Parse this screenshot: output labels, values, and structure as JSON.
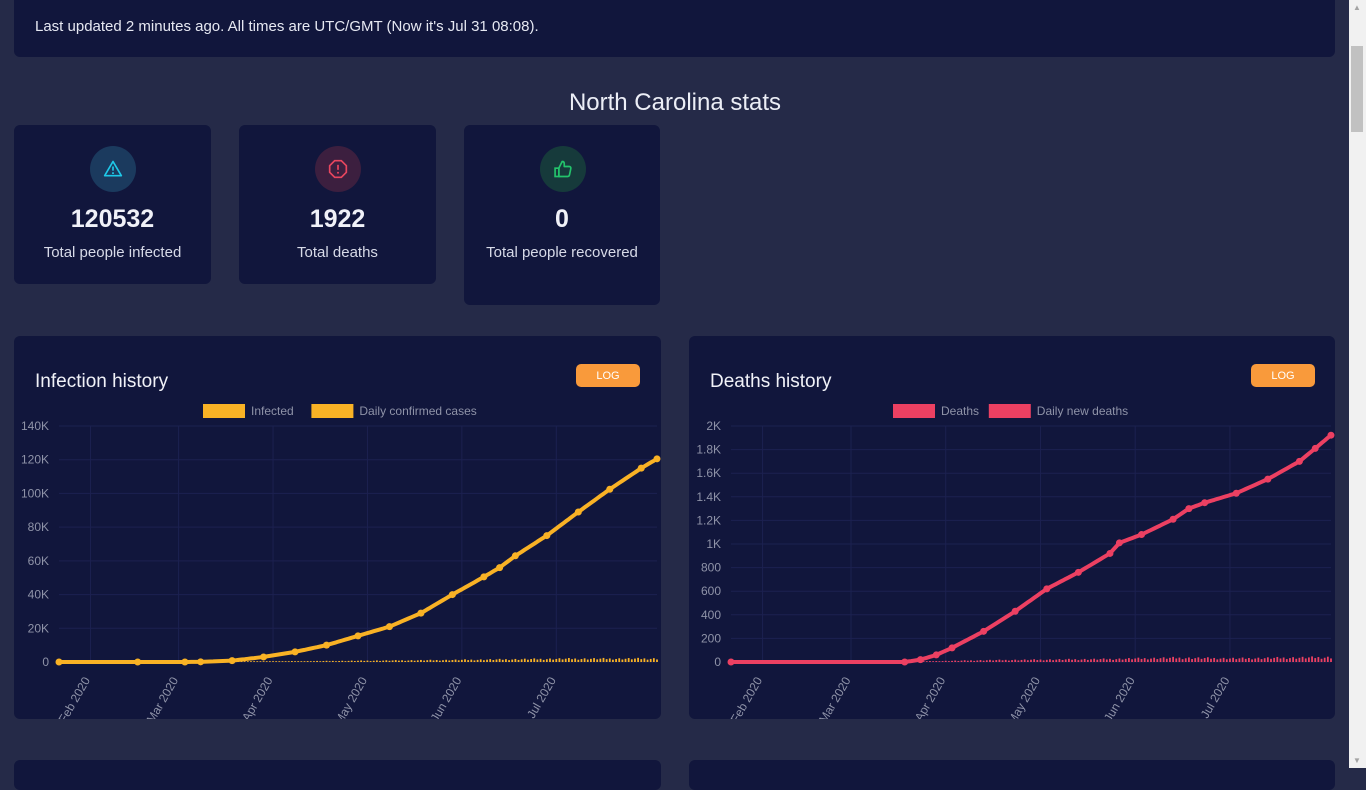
{
  "update_bar": {
    "text": "Last updated 2 minutes ago. All times are UTC/GMT (Now it's Jul 31 08:08)."
  },
  "page_title": "North Carolina stats",
  "stats": [
    {
      "value": "120532",
      "label": "Total people infected",
      "icon": "warning-triangle-icon",
      "color": "#1ec8e8"
    },
    {
      "value": "1922",
      "label": "Total deaths",
      "icon": "alert-octagon-icon",
      "color": "#e8465f"
    },
    {
      "value": "0",
      "label": "Total people recovered",
      "icon": "thumbs-up-icon",
      "color": "#23c36b"
    }
  ],
  "log_label": "LOG",
  "chart_data": [
    {
      "type": "line",
      "title": "Infection history",
      "legend": [
        "Infected",
        "Daily confirmed cases"
      ],
      "color": "#f9b225",
      "x_ticks": [
        "Feb 2020",
        "Mar 2020",
        "Apr 2020",
        "May 2020",
        "Jun 2020",
        "Jul 2020"
      ],
      "y_ticks": [
        "0",
        "20K",
        "40K",
        "60K",
        "80K",
        "100K",
        "120K",
        "140K"
      ],
      "ylim": [
        0,
        140000
      ],
      "x_range_days": [
        0,
        190
      ],
      "series": [
        {
          "name": "Infected",
          "x": [
            0,
            25,
            40,
            45,
            55,
            65,
            75,
            85,
            95,
            105,
            115,
            125,
            135,
            140,
            145,
            155,
            165,
            175,
            185,
            190
          ],
          "values": [
            0,
            0,
            0,
            100,
            800,
            3000,
            6000,
            10000,
            15500,
            21000,
            29000,
            40000,
            50500,
            56000,
            63000,
            75000,
            89000,
            102500,
            115000,
            120532
          ]
        },
        {
          "name": "Daily confirmed cases",
          "x": [
            40,
            60,
            80,
            100,
            120,
            140,
            160,
            190
          ],
          "values": [
            50,
            300,
            500,
            800,
            1100,
            1500,
            1900,
            2000
          ]
        }
      ]
    },
    {
      "type": "line",
      "title": "Deaths history",
      "legend": [
        "Deaths",
        "Daily new deaths"
      ],
      "color": "#ec4062",
      "x_ticks": [
        "Feb 2020",
        "Mar 2020",
        "Apr 2020",
        "May 2020",
        "Jun 2020",
        "Jul 2020"
      ],
      "y_ticks": [
        "0",
        "200",
        "400",
        "600",
        "800",
        "1K",
        "1.2K",
        "1.4K",
        "1.6K",
        "1.8K",
        "2K"
      ],
      "ylim": [
        0,
        2000
      ],
      "x_range_days": [
        0,
        190
      ],
      "series": [
        {
          "name": "Deaths",
          "x": [
            0,
            55,
            60,
            65,
            70,
            80,
            90,
            100,
            110,
            120,
            123,
            130,
            140,
            145,
            150,
            160,
            170,
            180,
            185,
            190
          ],
          "values": [
            0,
            0,
            20,
            60,
            120,
            260,
            430,
            620,
            760,
            920,
            1010,
            1080,
            1210,
            1300,
            1350,
            1430,
            1550,
            1700,
            1810,
            1922
          ]
        },
        {
          "name": "Daily new deaths",
          "x": [
            60,
            80,
            100,
            120,
            140,
            160,
            190
          ],
          "values": [
            5,
            15,
            20,
            25,
            35,
            30,
            40
          ]
        }
      ]
    }
  ]
}
